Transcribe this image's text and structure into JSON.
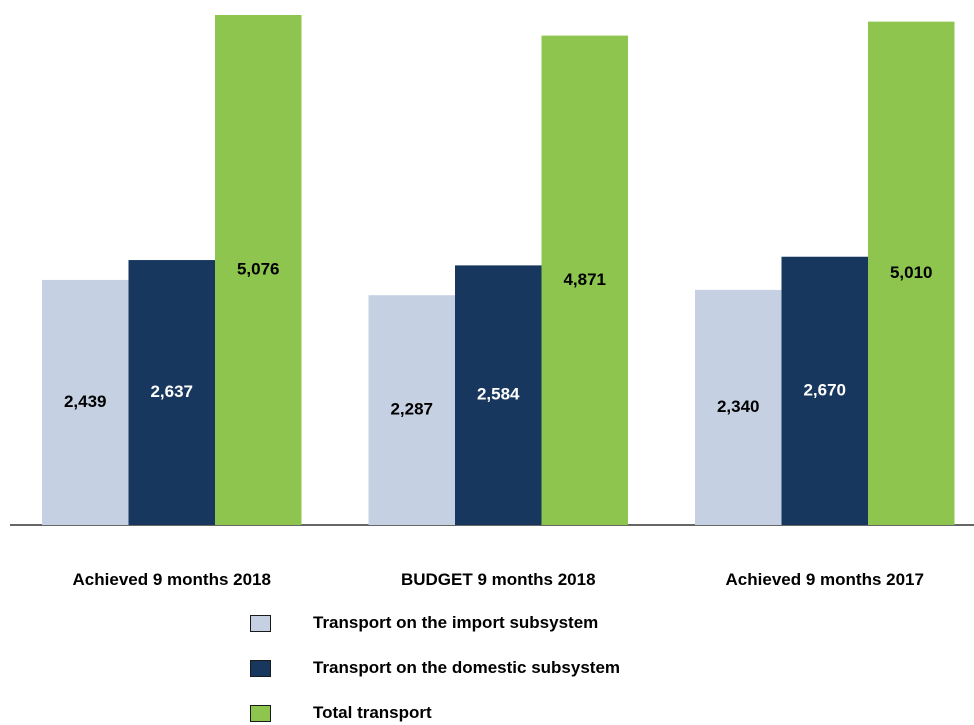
{
  "chart_data": {
    "type": "bar",
    "categories": [
      "Achieved 9 months 2018",
      "BUDGET 9 months 2018",
      "Achieved 9 months 2017"
    ],
    "series": [
      {
        "name": "Transport on the import subsystem",
        "color": "#c5d0e3",
        "values": [
          2439,
          2287,
          2340
        ],
        "value_labels": [
          "2,439",
          "2,287",
          "2,340"
        ]
      },
      {
        "name": "Transport on the domestic subsystem",
        "color": "#17375e",
        "values": [
          2637,
          2584,
          2670
        ],
        "value_labels": [
          "2,637",
          "2,584",
          "2,670"
        ]
      },
      {
        "name": "Total transport",
        "color": "#8dc54f",
        "values": [
          5076,
          4871,
          5010
        ],
        "value_labels": [
          "5,076",
          "4,871",
          "5,010"
        ]
      }
    ]
  }
}
